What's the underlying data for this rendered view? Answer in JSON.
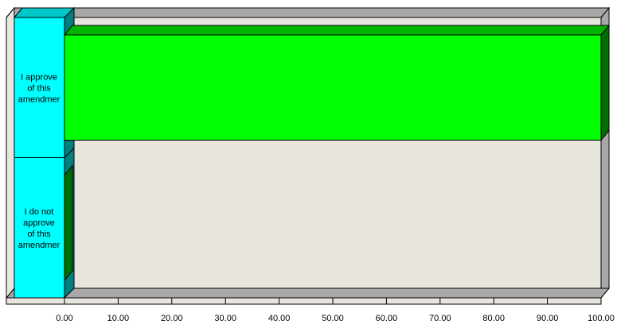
{
  "chart_data": {
    "type": "bar",
    "orientation": "horizontal",
    "style": "3d",
    "categories": [
      "I approve of this amendment",
      "I do not approve of this amendment"
    ],
    "category_label_lines": [
      [
        "I approve",
        "of this",
        "amendmer"
      ],
      [
        "I do not",
        "approve",
        "of this",
        "amendmer"
      ]
    ],
    "values": [
      100.0,
      0.0
    ],
    "xlim": [
      0,
      100
    ],
    "x_ticks": [
      "0.00",
      "10.00",
      "20.00",
      "30.00",
      "40.00",
      "50.00",
      "60.00",
      "70.00",
      "80.00",
      "90.00",
      "100.00"
    ],
    "grid": false,
    "legend": "none",
    "colors": {
      "bar_front": "#00ff00",
      "bar_top": "#00b400",
      "bar_side": "#006e00",
      "category_panel": "#00ffff",
      "category_panel_side": "#008080",
      "category_panel_top": "#00c8c8",
      "plot_wall": "#e8e4de",
      "floor": "#e8e4de",
      "depth_shade": "#a8a8a8"
    }
  }
}
